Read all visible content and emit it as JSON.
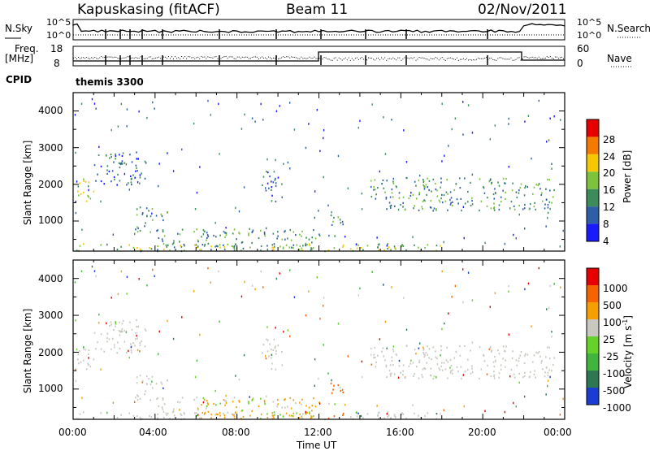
{
  "header": {
    "station": "Kapuskasing (fitACF)",
    "beam": "Beam 11",
    "date": "02/Nov/2011"
  },
  "top_panels": {
    "nsky_label": "N.Sky",
    "nsky_ticks": [
      "10^5",
      "10^0"
    ],
    "nsearch_label": "N.Search",
    "nsearch_ticks": [
      "10^5",
      "10^0"
    ],
    "freq_label": "Freq.",
    "freq_unit": "[MHz]",
    "freq_ticks": [
      "18",
      "8"
    ],
    "nave_label": "Nave",
    "nave_ticks": [
      "60",
      "0"
    ],
    "cpid_label": "CPID",
    "cpid_value": "themis 3300"
  },
  "chart_data": [
    {
      "type": "heatmap",
      "name": "power-panel",
      "ylabel": "Slant Range [km]",
      "yticks": [
        1000,
        2000,
        3000,
        4000
      ],
      "ylim": [
        180,
        4500
      ],
      "xlim_hours": [
        0,
        24
      ],
      "colorbar_label": "Power [dB]",
      "colorbar_ticks": [
        "4",
        "8",
        "12",
        "16",
        "20",
        "24",
        "28"
      ],
      "colorbar_colors": [
        "#1a1aff",
        "#2d5fa8",
        "#3c8c5a",
        "#7dc23c",
        "#f5c800",
        "#f57a00",
        "#e60000"
      ],
      "echo_regions": [
        {
          "t0": 0.1,
          "t1": 1.0,
          "r0": 1500,
          "r1": 2200,
          "level": 3
        },
        {
          "t0": 1.0,
          "t1": 3.6,
          "r0": 2000,
          "r1": 2900,
          "level": 1
        },
        {
          "t0": 3.0,
          "t1": 4.6,
          "r0": 700,
          "r1": 1400,
          "level": 2
        },
        {
          "t0": 4.0,
          "t1": 12.0,
          "r0": 200,
          "r1": 800,
          "level": 2
        },
        {
          "t0": 9.2,
          "t1": 10.2,
          "r0": 1500,
          "r1": 2400,
          "level": 1
        },
        {
          "t0": 12.4,
          "t1": 13.2,
          "r0": 800,
          "r1": 1200,
          "level": 2
        },
        {
          "t0": 14.5,
          "t1": 23.5,
          "r0": 1300,
          "r1": 2200,
          "level": 2
        },
        {
          "t0": 0.0,
          "t1": 18.0,
          "r0": 200,
          "r1": 400,
          "level": 3
        }
      ]
    },
    {
      "type": "heatmap",
      "name": "velocity-panel",
      "ylabel": "Slant Range [km]",
      "yticks": [
        1000,
        2000,
        3000,
        4000
      ],
      "ylim": [
        180,
        4500
      ],
      "xlim_hours": [
        0,
        24
      ],
      "xlabel": "Time UT",
      "xticks": [
        "00:00",
        "04:00",
        "08:00",
        "12:00",
        "16:00",
        "20:00",
        "00:00"
      ],
      "colorbar_label": "Velocity [m s",
      "colorbar_label_sup": "-1",
      "colorbar_label_end": "]",
      "colorbar_ticks": [
        "1000",
        "500",
        "100",
        "25",
        "-25",
        "-100",
        "-500",
        "-1000"
      ],
      "colorbar_colors": [
        "#1a3cd2",
        "#2d7850",
        "#41b43c",
        "#64d228",
        "#c8c8c0",
        "#f5a000",
        "#f56400",
        "#e60000"
      ],
      "ground_scatter_color": "#c8c8c0"
    }
  ]
}
